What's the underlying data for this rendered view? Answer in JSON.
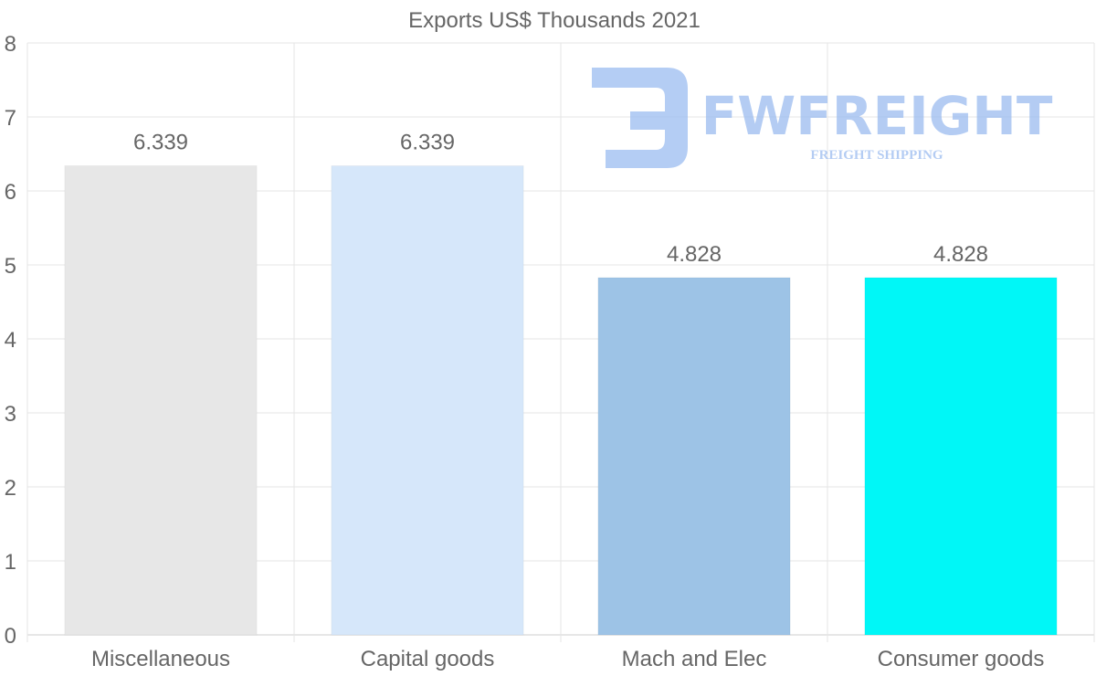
{
  "chart_data": {
    "type": "bar",
    "title": "Exports US$ Thousands 2021",
    "categories": [
      "Miscellaneous",
      "Capital goods",
      "Mach and Elec",
      "Consumer goods"
    ],
    "values": [
      6.339,
      6.339,
      4.828,
      4.828
    ],
    "value_labels": [
      "6.339",
      "6.339",
      "4.828",
      "4.828"
    ],
    "colors": [
      "#e7e7e7",
      "#d6e7fa",
      "#9dc3e6",
      "#00f7f7"
    ],
    "ylim": [
      0,
      8
    ],
    "yticks": [
      0,
      1,
      2,
      3,
      4,
      5,
      6,
      7,
      8
    ],
    "xlabel": "",
    "ylabel": "",
    "grid": true
  },
  "watermark": {
    "brand": "FWFREIGHT",
    "tagline": "FREIGHT SHIPPING",
    "color": "#9bbcf0"
  }
}
